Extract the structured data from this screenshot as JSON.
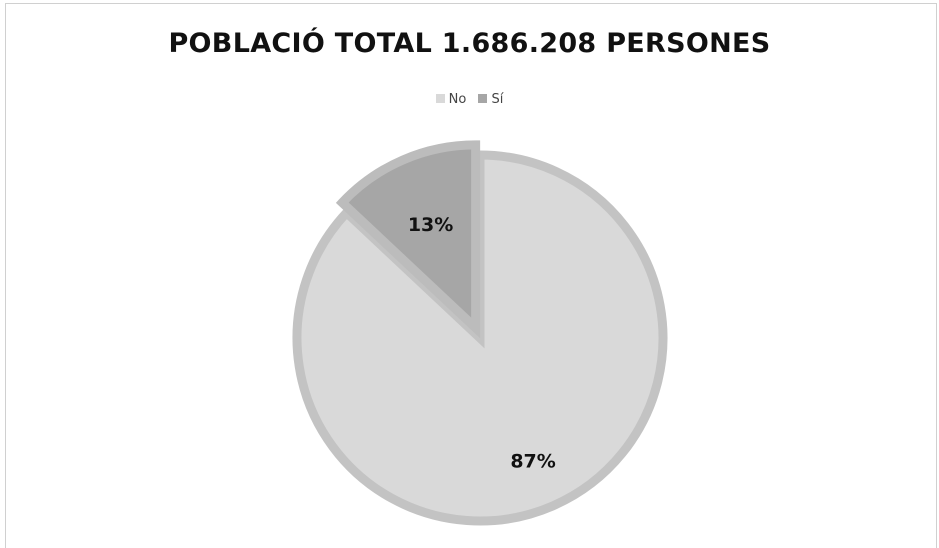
{
  "chart_data": {
    "type": "pie",
    "title": "POBLACIÓ TOTAL 1.686.208 PERSONES",
    "categories": [
      "No",
      "Sí"
    ],
    "values": [
      87,
      13
    ],
    "labels": [
      "87%",
      "13%"
    ],
    "colors": [
      "#d9d9d9",
      "#a6a6a6"
    ],
    "border_colors": [
      "#c3c3c3",
      "#bcbcbc"
    ],
    "legend_position": "top",
    "exploded": "Sí"
  }
}
